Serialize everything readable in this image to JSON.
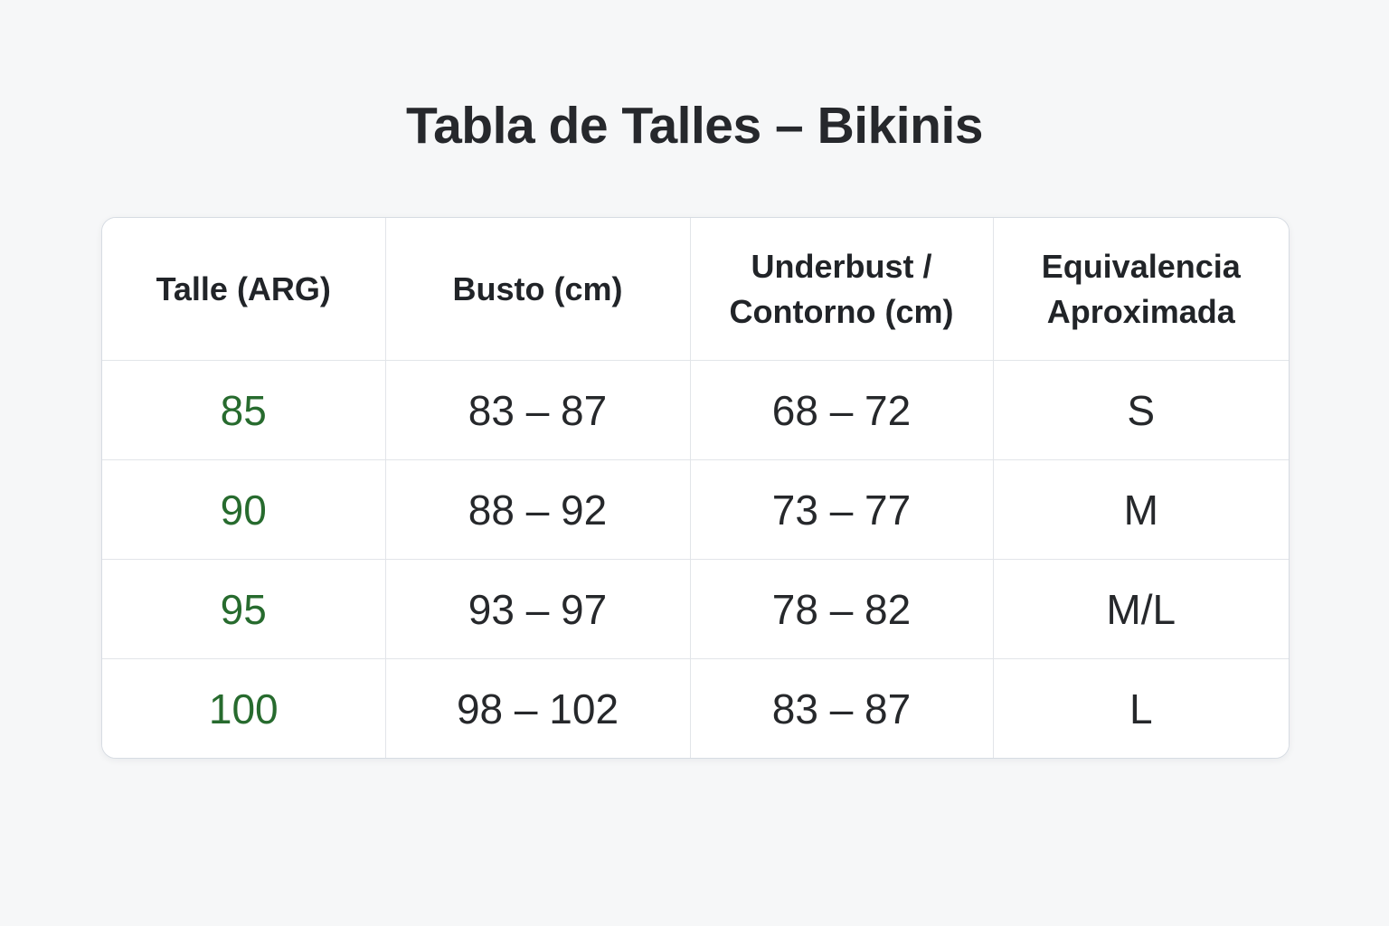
{
  "page": {
    "title": "Tabla de Talles – Bikinis"
  },
  "colors": {
    "size_accent_green": "#276b2e",
    "text_dark": "#26282b",
    "grid_line": "#e2e5e9",
    "card_background": "#ffffff",
    "page_background": "#f6f7f8"
  },
  "chart_data": {
    "type": "table",
    "title": "Tabla de Talles – Bikinis",
    "columns": [
      "Talle (ARG)",
      "Busto (cm)",
      "Underbust / Contorno (cm)",
      "Equivalencia Aproximada"
    ],
    "rows": [
      [
        "85",
        "83 – 87",
        "68 – 72",
        "S"
      ],
      [
        "90",
        "88 – 92",
        "73 – 77",
        "M"
      ],
      [
        "95",
        "93 – 97",
        "78 – 82",
        "M/L"
      ],
      [
        "100",
        "98 – 102",
        "83 – 87",
        "L"
      ]
    ],
    "layout_hints": {
      "first_column_color": "#276b2e",
      "header_rows": 1,
      "grid": "full inner grid, rounded outer card"
    }
  }
}
